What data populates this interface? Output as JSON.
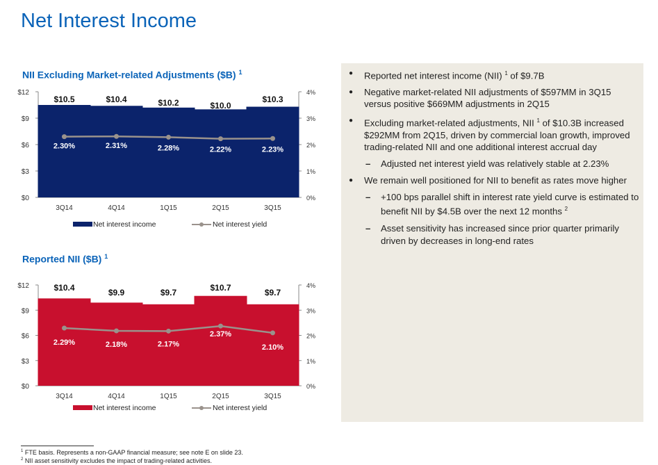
{
  "page_title": "Net Interest Income",
  "colors": {
    "title_blue": "#0a63b8",
    "bar_navy": "#0b236b",
    "bar_red": "#c8102e",
    "yield_line": "#9a928c",
    "panel_bg": "#eeebe3"
  },
  "chart_data": [
    {
      "type": "bar",
      "title": "NII Excluding Market-related Adjustments ($B)",
      "title_note": "1",
      "categories": [
        "3Q14",
        "4Q14",
        "1Q15",
        "2Q15",
        "3Q15"
      ],
      "series": [
        {
          "name": "Net interest income",
          "kind": "bar",
          "axis": "left",
          "color": "#0b236b",
          "values": [
            10.5,
            10.4,
            10.2,
            10.0,
            10.3
          ],
          "labels": [
            "$10.5",
            "$10.4",
            "$10.2",
            "$10.0",
            "$10.3"
          ]
        },
        {
          "name": "Net interest yield",
          "kind": "line",
          "axis": "right",
          "color": "#9a928c",
          "values": [
            2.3,
            2.31,
            2.28,
            2.22,
            2.23
          ],
          "labels": [
            "2.30%",
            "2.31%",
            "2.28%",
            "2.22%",
            "2.23%"
          ]
        }
      ],
      "ylim": [
        0,
        12
      ],
      "yticks": [
        "$0",
        "$3",
        "$6",
        "$9",
        "$12"
      ],
      "y2lim": [
        0,
        4
      ],
      "y2ticks": [
        "0%",
        "1%",
        "2%",
        "3%",
        "4%"
      ],
      "legend_position": "bottom",
      "grid": false
    },
    {
      "type": "bar",
      "title": "Reported NII ($B)",
      "title_note": "1",
      "categories": [
        "3Q14",
        "4Q14",
        "1Q15",
        "2Q15",
        "3Q15"
      ],
      "series": [
        {
          "name": "Net interest income",
          "kind": "bar",
          "axis": "left",
          "color": "#c8102e",
          "values": [
            10.4,
            9.9,
            9.7,
            10.7,
            9.7
          ],
          "labels": [
            "$10.4",
            "$9.9",
            "$9.7",
            "$10.7",
            "$9.7"
          ]
        },
        {
          "name": "Net interest yield",
          "kind": "line",
          "axis": "right",
          "color": "#9a928c",
          "values": [
            2.29,
            2.18,
            2.17,
            2.37,
            2.1
          ],
          "labels": [
            "2.29%",
            "2.18%",
            "2.17%",
            "2.37%",
            "2.10%"
          ]
        }
      ],
      "ylim": [
        0,
        12
      ],
      "yticks": [
        "$0",
        "$3",
        "$6",
        "$9",
        "$12"
      ],
      "y2lim": [
        0,
        4
      ],
      "y2ticks": [
        "0%",
        "1%",
        "2%",
        "3%",
        "4%"
      ],
      "legend_position": "bottom",
      "grid": false
    }
  ],
  "bullets": [
    {
      "level": 1,
      "text": "Reported net interest income (NII)",
      "sup": "1",
      "after": " of $9.7B"
    },
    {
      "level": 1,
      "text": "Negative market-related NII adjustments of $597MM in 3Q15 versus positive $669MM adjustments in 2Q15"
    },
    {
      "level": 1,
      "text": "Excluding market-related adjustments, NII",
      "sup": "1",
      "after": " of $10.3B increased $292MM from 2Q15, driven by commercial loan growth, improved trading-related NII and one additional interest accrual day"
    },
    {
      "level": 2,
      "text": "Adjusted net interest yield was relatively stable at 2.23%"
    },
    {
      "level": 1,
      "text": "We remain well positioned for NII to benefit as rates move higher"
    },
    {
      "level": 2,
      "text": "+100 bps parallel shift in interest rate yield curve is estimated to benefit NII by $4.5B over the next 12 months",
      "sup": "2"
    },
    {
      "level": 2,
      "text": "Asset sensitivity has increased since prior quarter primarily driven by decreases in long-end rates"
    }
  ],
  "footnotes": [
    {
      "mark": "1",
      "text": "FTE basis. Represents a non-GAAP financial measure; see note E on slide 23."
    },
    {
      "mark": "2",
      "text": "NII asset sensitivity excludes the impact of trading-related activities."
    }
  ]
}
